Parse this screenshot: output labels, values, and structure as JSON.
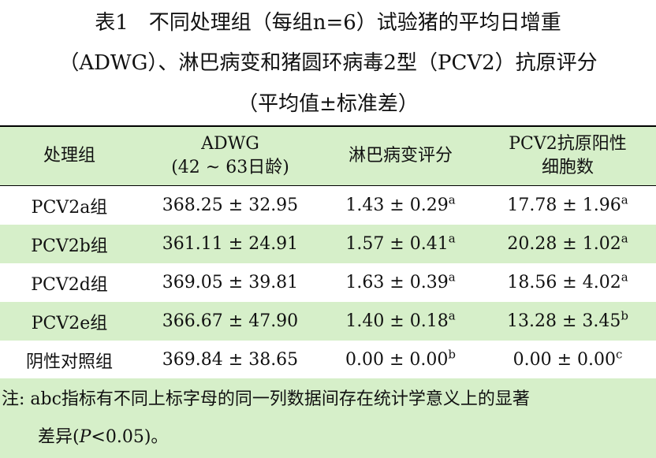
{
  "title": {
    "line1": "表1　不同处理组（每组n=6）试验猪的平均日增重",
    "line2": "（ADWG）、淋巴病变和猪圆环病毒2型（PCV2）抗原评分",
    "line3": "（平均值±标准差）"
  },
  "table": {
    "headers": [
      {
        "line1": "处理组",
        "line2": ""
      },
      {
        "line1": "ADWG",
        "line2": "(42 ~ 63日龄)"
      },
      {
        "line1": "淋巴病变评分",
        "line2": ""
      },
      {
        "line1": "PCV2抗原阳性",
        "line2": "细胞数"
      }
    ],
    "rows": [
      {
        "group": "PCV2a组",
        "adwg": "368.25 ± 32.95",
        "lymph": "1.43 ± 0.29",
        "lymph_sup": "a",
        "pcv2": "17.78 ± 1.96",
        "pcv2_sup": "a"
      },
      {
        "group": "PCV2b组",
        "adwg": "361.11 ± 24.91",
        "lymph": "1.57 ± 0.41",
        "lymph_sup": "a",
        "pcv2": "20.28 ± 1.02",
        "pcv2_sup": "a"
      },
      {
        "group": "PCV2d组",
        "adwg": "369.05 ± 39.81",
        "lymph": "1.63 ± 0.39",
        "lymph_sup": "a",
        "pcv2": "18.56 ± 4.02",
        "pcv2_sup": "a"
      },
      {
        "group": "PCV2e组",
        "adwg": "366.67 ± 47.90",
        "lymph": "1.40 ± 0.18",
        "lymph_sup": "a",
        "pcv2": "13.28 ± 3.45",
        "pcv2_sup": "b"
      },
      {
        "group": "阴性对照组",
        "adwg": "369.84 ± 38.65",
        "lymph": "0.00 ± 0.00",
        "lymph_sup": "b",
        "pcv2": "0.00 ± 0.00",
        "pcv2_sup": "c"
      }
    ]
  },
  "note": {
    "line1": "注: abc指标有不同上标字母的同一列数据间存在统计学意义上的显著",
    "line2_prefix": "差异(",
    "line2_italic": "P",
    "line2_suffix": "<0.05)。"
  },
  "colors": {
    "band": "#d6efc9",
    "rule": "#000000",
    "text": "#111111"
  }
}
